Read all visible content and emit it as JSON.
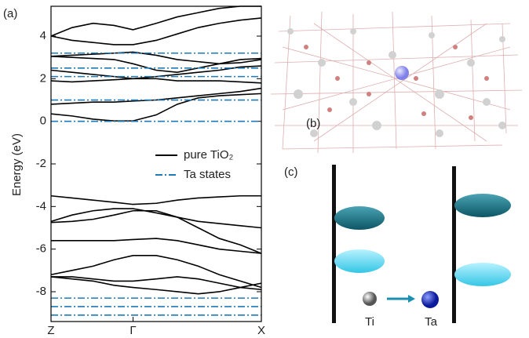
{
  "chart_data": {
    "type": "band",
    "panel_label": "(a)",
    "y_label": "Energy (eV)",
    "x": [
      0,
      0.1,
      0.2,
      0.3,
      0.39,
      0.5,
      0.6,
      0.7,
      0.8,
      0.9,
      1
    ],
    "xlim": [
      0,
      1
    ],
    "xticks": [
      {
        "value": 0,
        "label": "Z"
      },
      {
        "value": 0.39,
        "label": "Γ"
      },
      {
        "value": 1,
        "label": "X"
      }
    ],
    "ylim": [
      -9.4,
      5.4
    ],
    "yticks": [
      4,
      2,
      0,
      -2,
      -4,
      -6,
      -8
    ],
    "legend": "right",
    "series": [
      {
        "name": "pure TiO₂",
        "color": "#000000",
        "lines": [
          [
            4.0,
            4.4,
            4.6,
            4.5,
            4.3,
            4.6,
            4.9,
            5.1,
            5.3,
            5.4,
            5.4
          ],
          [
            4.0,
            3.8,
            3.7,
            3.6,
            3.6,
            3.8,
            4.1,
            4.4,
            4.6,
            4.75,
            4.85
          ],
          [
            3.05,
            3.1,
            3.15,
            3.2,
            3.25,
            3.1,
            2.9,
            2.8,
            2.7,
            2.75,
            2.9
          ],
          [
            3.05,
            3.0,
            2.95,
            2.9,
            2.7,
            2.4,
            2.3,
            2.5,
            2.7,
            2.9,
            2.95
          ],
          [
            2.4,
            2.3,
            2.2,
            2.1,
            2.0,
            2.0,
            1.9,
            1.9,
            1.9,
            1.85,
            1.8
          ],
          [
            1.9,
            1.85,
            1.9,
            1.95,
            2.0,
            2.1,
            2.2,
            2.3,
            2.4,
            2.55,
            2.6
          ],
          [
            0.8,
            0.85,
            0.9,
            0.9,
            0.95,
            1.0,
            1.1,
            1.2,
            1.3,
            1.4,
            1.55
          ],
          [
            0.35,
            0.25,
            0.1,
            0.02,
            0.02,
            0.3,
            0.8,
            1.1,
            1.2,
            1.25,
            1.3
          ],
          [
            -3.5,
            -3.6,
            -3.7,
            -3.8,
            -3.9,
            -3.85,
            -3.7,
            -3.6,
            -3.55,
            -3.5,
            -3.5
          ],
          [
            -4.7,
            -4.4,
            -4.2,
            -4.1,
            -4.1,
            -4.3,
            -4.5,
            -4.7,
            -4.8,
            -4.9,
            -5.0
          ],
          [
            -4.75,
            -4.7,
            -4.6,
            -4.4,
            -4.2,
            -4.2,
            -4.5,
            -5.0,
            -5.5,
            -5.8,
            -6.2
          ],
          [
            -5.6,
            -5.6,
            -5.6,
            -5.6,
            -5.55,
            -5.5,
            -5.6,
            -5.8,
            -6.0,
            -6.1,
            -6.2
          ],
          [
            -7.2,
            -7.0,
            -6.8,
            -6.5,
            -6.3,
            -6.3,
            -6.5,
            -6.8,
            -7.2,
            -7.5,
            -7.8
          ],
          [
            -7.3,
            -7.3,
            -7.4,
            -7.5,
            -7.5,
            -7.4,
            -7.3,
            -7.4,
            -7.6,
            -7.8,
            -7.9
          ],
          [
            -7.3,
            -7.4,
            -7.5,
            -7.7,
            -7.8,
            -7.9,
            -8.0,
            -8.1,
            -8.0,
            -7.8,
            -7.6
          ]
        ]
      },
      {
        "name": "Ta states",
        "color": "#1f7ab8",
        "levels": [
          3.2,
          2.5,
          2.1,
          1.0,
          0,
          -8.3,
          -8.7,
          -9.1
        ]
      }
    ]
  },
  "panel_b": {
    "label": "(b)"
  },
  "panel_c": {
    "label": "(c)",
    "atoms": [
      "Ti",
      "Ta"
    ]
  }
}
